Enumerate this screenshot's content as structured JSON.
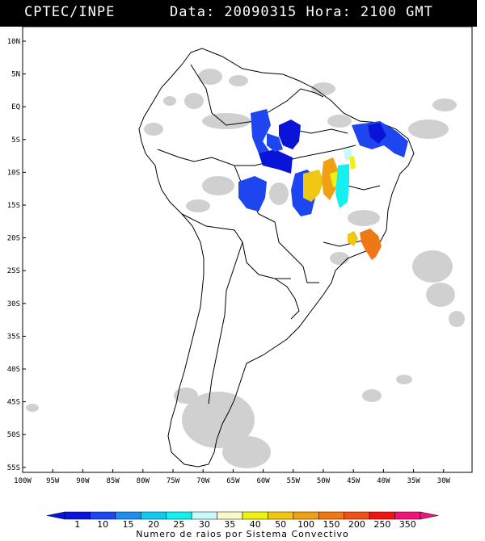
{
  "header": {
    "source": "CPTEC/INPE",
    "datetime": "Data: 20090315 Hora: 2100 GMT"
  },
  "map": {
    "lat_labels": [
      "10N",
      "5N",
      "EQ",
      "5S",
      "10S",
      "15S",
      "20S",
      "25S",
      "30S",
      "35S",
      "40S",
      "45S",
      "50S",
      "55S"
    ],
    "lon_labels": [
      "100W",
      "95W",
      "90W",
      "85W",
      "80W",
      "75W",
      "70W",
      "65W",
      "60W",
      "55W",
      "50W",
      "45W",
      "40W",
      "35W",
      "30W"
    ]
  },
  "legend": {
    "title": "Numero de raios por Sistema Convectivo",
    "values": [
      "1",
      "10",
      "15",
      "20",
      "25",
      "30",
      "35",
      "40",
      "50",
      "100",
      "150",
      "200",
      "250",
      "350"
    ],
    "colors": [
      "#0a14d8",
      "#1e46f0",
      "#1e8cf0",
      "#14c8f0",
      "#14f0f0",
      "#c8fafa",
      "#fafac8",
      "#f0f014",
      "#f0c814",
      "#f0a014",
      "#f07814",
      "#f05014",
      "#f01414",
      "#f01478"
    ]
  }
}
